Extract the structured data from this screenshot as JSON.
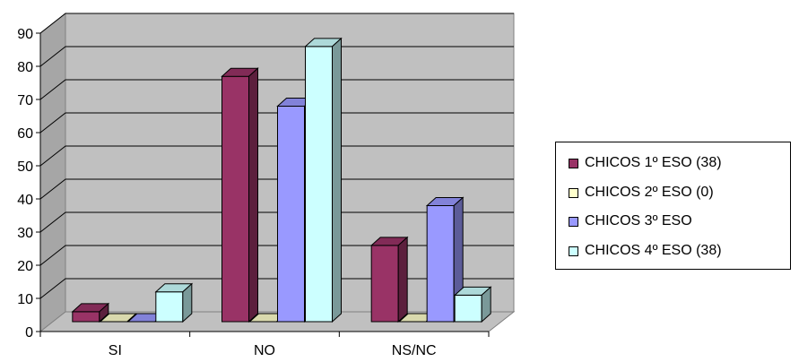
{
  "chart_data": {
    "type": "bar",
    "title": "",
    "xlabel": "",
    "ylabel": "",
    "categories": [
      "SI",
      "NO",
      "NS/NC"
    ],
    "ylim": [
      0,
      90
    ],
    "yticks": [
      0,
      10,
      20,
      30,
      40,
      50,
      60,
      70,
      80,
      90
    ],
    "grid": true,
    "three_d": true,
    "legend_position": "right",
    "series": [
      {
        "name": "CHICOS 1º ESO (38)",
        "values": [
          3,
          74,
          23
        ],
        "color": "#993366"
      },
      {
        "name": "CHICOS 2º ESO (0)",
        "values": [
          0,
          0,
          0
        ],
        "color": "#ffffcc"
      },
      {
        "name": "CHICOS 3º ESO",
        "values": [
          0,
          65,
          35
        ],
        "color": "#9999ff"
      },
      {
        "name": "CHICOS 4º ESO (38)",
        "values": [
          9,
          83,
          8
        ],
        "color": "#ccffff"
      }
    ],
    "wall_color": "#c0c0c0"
  }
}
